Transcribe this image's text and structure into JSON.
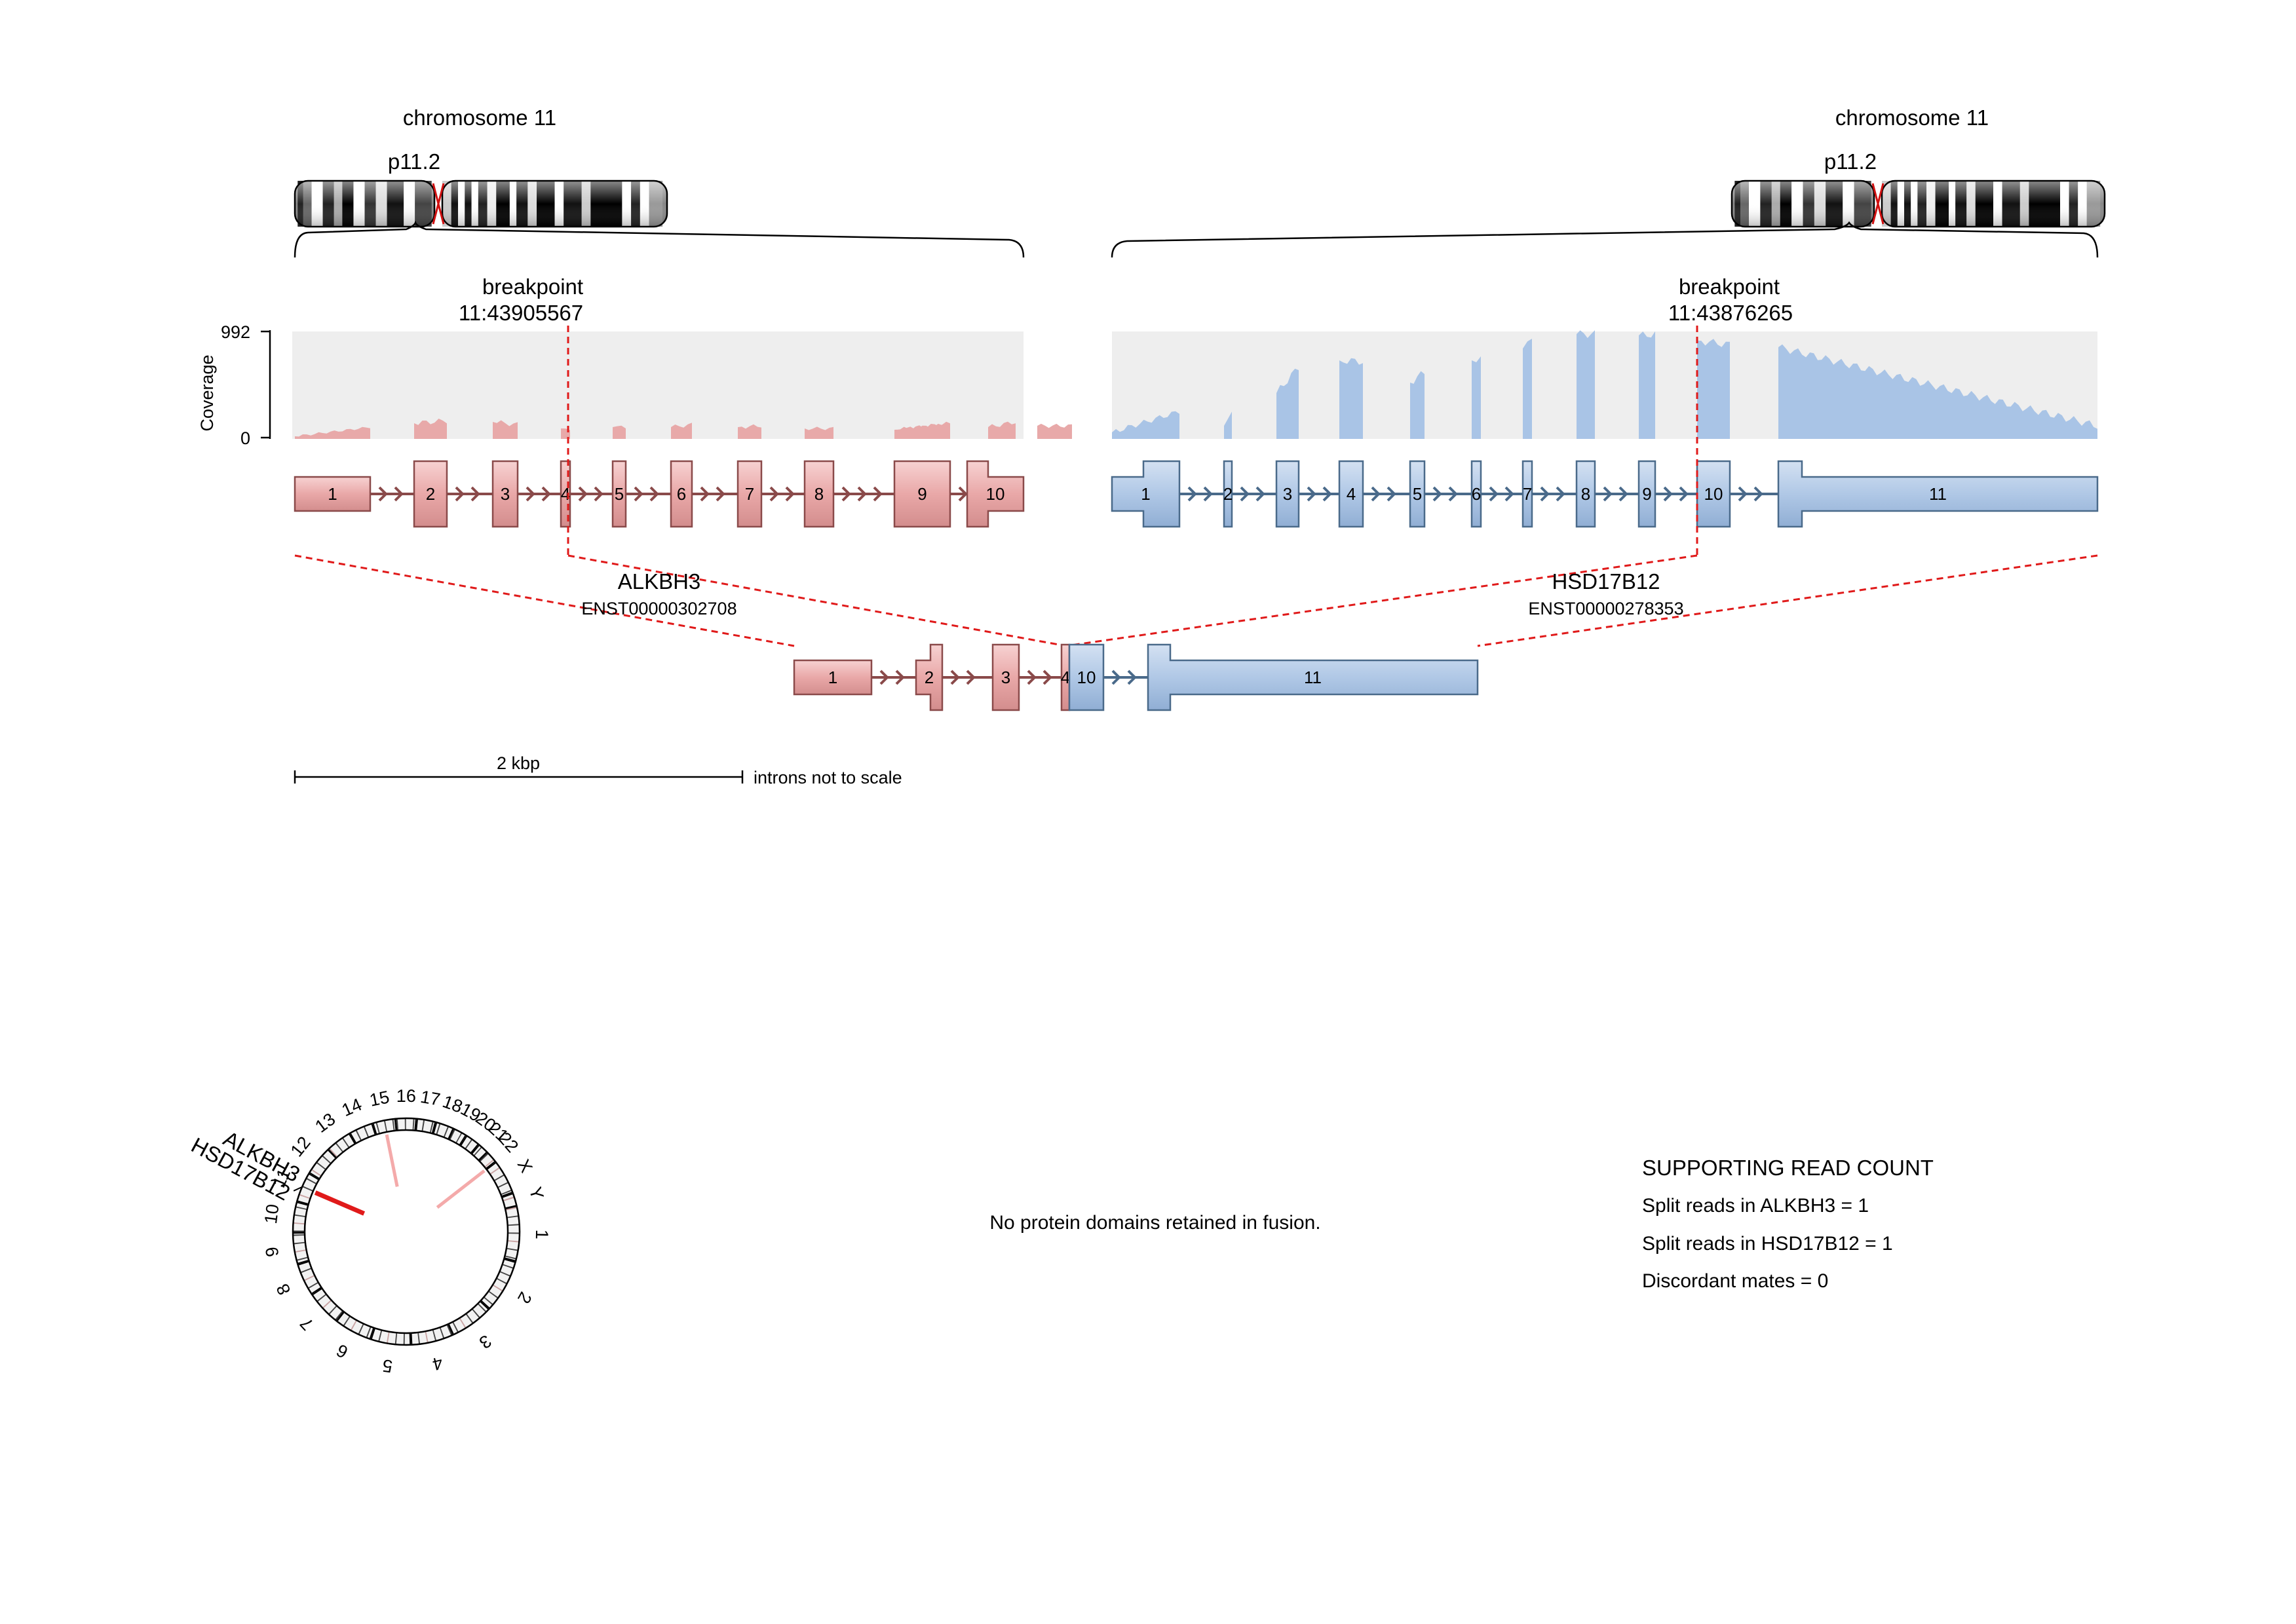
{
  "gene1": {
    "name": "ALKBH3",
    "transcript": "ENST00000302708",
    "chromosome_label": "chromosome 11",
    "band": "p11.2",
    "breakpoint_title": "breakpoint",
    "breakpoint_pos": "11:43905567",
    "exons": [
      "1",
      "2",
      "3",
      "4",
      "5",
      "6",
      "7",
      "8",
      "9",
      "10"
    ],
    "color_fill": "#f2b8b8",
    "color_edge": "#8a4a4a",
    "coverage_color": "#e8a9a9"
  },
  "gene2": {
    "name": "HSD17B12",
    "transcript": "ENST00000278353",
    "chromosome_label": "chromosome 11",
    "band": "p11.2",
    "breakpoint_title": "breakpoint",
    "breakpoint_pos": "11:43876265",
    "exons": [
      "1",
      "2",
      "3",
      "4",
      "5",
      "6",
      "7",
      "8",
      "9",
      "10",
      "11"
    ],
    "color_fill": "#b8cde6",
    "color_edge": "#4a6a8a",
    "coverage_color": "#a9c4e6"
  },
  "coverage": {
    "axis_label": "Coverage",
    "max_tick": "992",
    "min_tick": "0"
  },
  "fusion": {
    "exons_gene1": [
      "1",
      "2",
      "3",
      "4"
    ],
    "exons_gene2": [
      "10",
      "11"
    ]
  },
  "scale_bar": {
    "label": "2 kbp",
    "note": "introns not to scale"
  },
  "circos": {
    "chromosomes": [
      "1",
      "2",
      "3",
      "4",
      "5",
      "6",
      "7",
      "8",
      "9",
      "10",
      "11",
      "12",
      "13",
      "14",
      "15",
      "16",
      "17",
      "18",
      "19",
      "20",
      "21",
      "22",
      "X",
      "Y"
    ],
    "gene_labels": [
      "ALKBH3",
      "HSD17B12"
    ],
    "link_colors": [
      "#e01a1a",
      "#f4aaaa"
    ]
  },
  "protein_domains": {
    "message": "No protein domains retained in fusion."
  },
  "read_counts": {
    "title": "SUPPORTING READ COUNT",
    "split_gene1": "Split reads in ALKBH3 = 1",
    "split_gene2": "Split reads in HSD17B12 = 1",
    "discordant": "Discordant mates = 0"
  }
}
